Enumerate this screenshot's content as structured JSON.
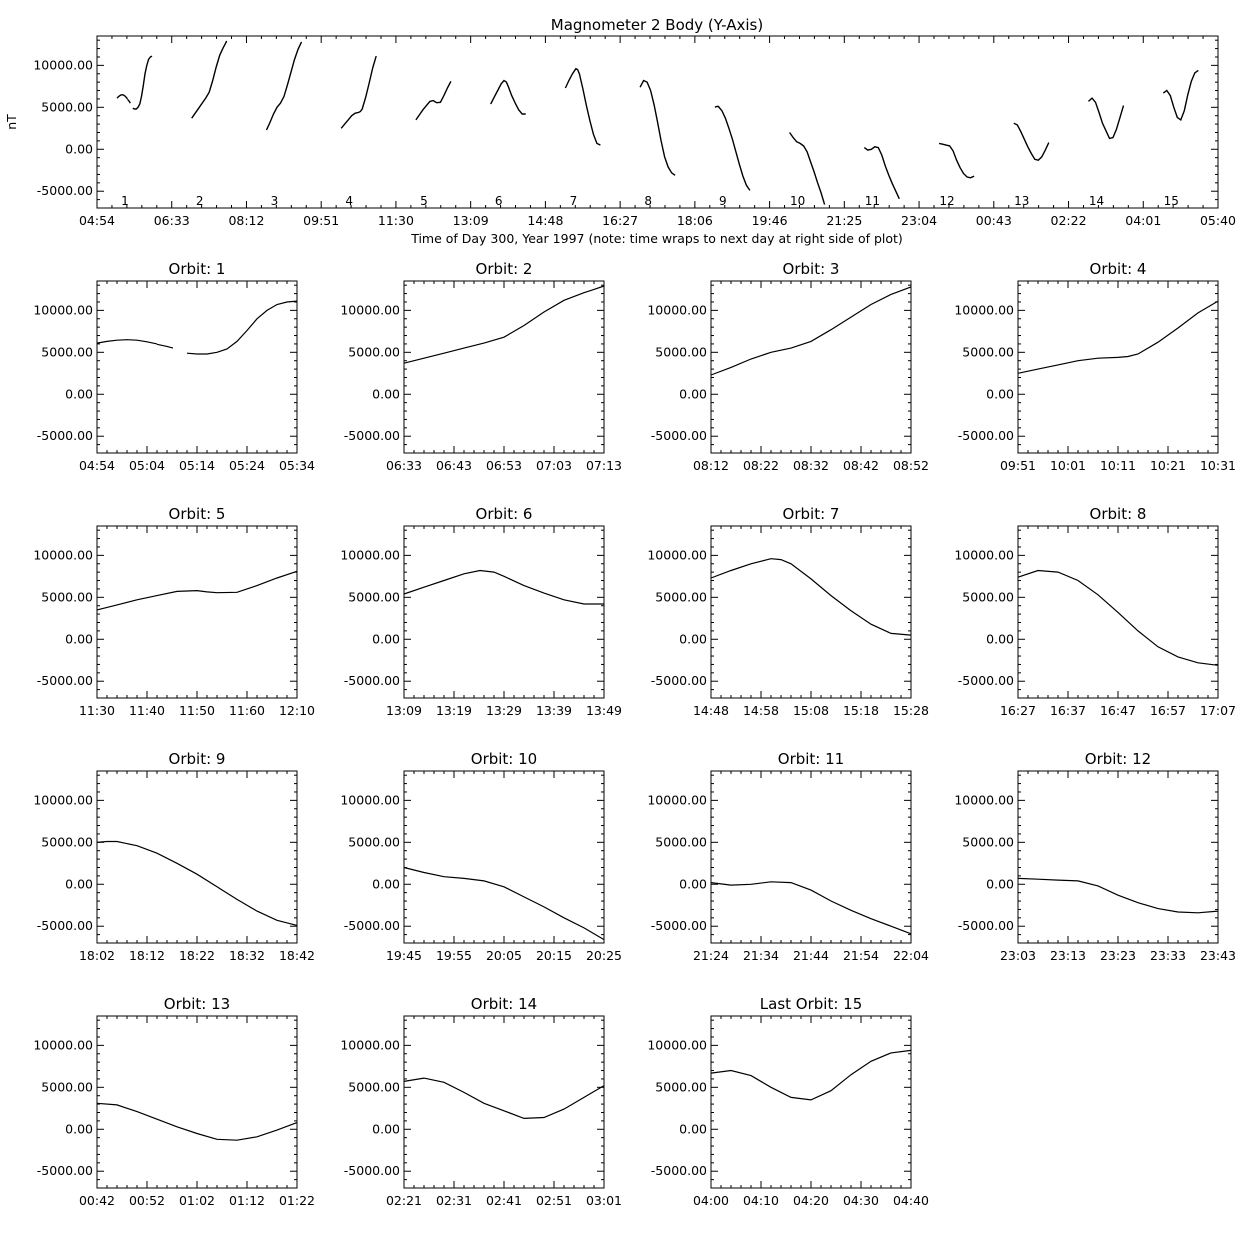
{
  "main": {
    "title": "Magnometer 2 Body (Y-Axis)",
    "xlabel": "Time of Day 300, Year 1997 (note: time wraps to next day at right side of plot)",
    "ylabel": "nT",
    "yticks": [
      "10000.00",
      "5000.00",
      "0.00",
      "-5000.00"
    ],
    "xticks": [
      "04:54",
      "06:33",
      "08:12",
      "09:51",
      "11:30",
      "13:09",
      "14:48",
      "16:27",
      "18:06",
      "19:46",
      "21:25",
      "23:04",
      "00:43",
      "02:22",
      "04:01",
      "05:40"
    ],
    "orbit_labels": [
      "1",
      "2",
      "3",
      "4",
      "5",
      "6",
      "7",
      "8",
      "9",
      "10",
      "11",
      "12",
      "13",
      "14",
      "15"
    ]
  },
  "chart_data": {
    "type": "line",
    "ylim": [
      -7000,
      13500
    ],
    "yticks": [
      10000,
      5000,
      0,
      -5000
    ],
    "main_xlim": [
      0,
      15
    ],
    "panels": [
      {
        "title": "Orbit: 1",
        "xticks": [
          "04:54",
          "05:04",
          "05:14",
          "05:24",
          "05:34"
        ],
        "series": [
          {
            "x": [
              0,
              0.05,
              0.1,
              0.15,
              0.2,
              0.25,
              0.3
            ],
            "y": [
              6100,
              6300,
              6450,
              6500,
              6450,
              6250,
              6000
            ]
          },
          {
            "x": [
              0.3,
              0.35,
              0.38
            ],
            "y": [
              5950,
              5700,
              5500
            ]
          },
          {
            "x": [
              0.45,
              0.5,
              0.55,
              0.6,
              0.65,
              0.7,
              0.75,
              0.8,
              0.85,
              0.9,
              0.95,
              1.0
            ],
            "y": [
              4900,
              4800,
              4800,
              5000,
              5400,
              6300,
              7600,
              9000,
              10000,
              10700,
              11000,
              11100
            ]
          }
        ]
      },
      {
        "title": "Orbit: 2",
        "xticks": [
          "06:33",
          "06:43",
          "06:53",
          "07:03",
          "07:13"
        ],
        "series": [
          {
            "x": [
              0,
              0.1,
              0.2,
              0.3,
              0.4,
              0.5,
              0.6,
              0.7,
              0.8,
              0.9,
              0.95,
              1.0
            ],
            "y": [
              3700,
              4300,
              4900,
              5500,
              6100,
              6800,
              8200,
              9800,
              11200,
              12100,
              12500,
              12900
            ]
          }
        ]
      },
      {
        "title": "Orbit: 3",
        "xticks": [
          "08:12",
          "08:22",
          "08:32",
          "08:42",
          "08:52"
        ],
        "series": [
          {
            "x": [
              0,
              0.1,
              0.2,
              0.3,
              0.4,
              0.5,
              0.6,
              0.7,
              0.8,
              0.9,
              1.0
            ],
            "y": [
              2300,
              3200,
              4200,
              5000,
              5500,
              6300,
              7700,
              9200,
              10700,
              11900,
              12800
            ]
          }
        ]
      },
      {
        "title": "Orbit: 4",
        "xticks": [
          "09:51",
          "10:01",
          "10:11",
          "10:21",
          "10:31"
        ],
        "series": [
          {
            "x": [
              0,
              0.1,
              0.2,
              0.3,
              0.4,
              0.5,
              0.55,
              0.6,
              0.7,
              0.8,
              0.9,
              1.0
            ],
            "y": [
              2500,
              3000,
              3500,
              4000,
              4300,
              4400,
              4500,
              4800,
              6200,
              7900,
              9700,
              11100
            ]
          }
        ]
      },
      {
        "title": "Orbit: 5",
        "xticks": [
          "11:30",
          "11:40",
          "11:50",
          "11:60",
          "12:10"
        ],
        "series": [
          {
            "x": [
              0,
              0.1,
              0.2,
              0.3,
              0.4,
              0.5,
              0.55,
              0.6,
              0.7,
              0.8,
              0.9,
              1.0
            ],
            "y": [
              3500,
              4100,
              4700,
              5200,
              5700,
              5800,
              5650,
              5550,
              5600,
              6400,
              7300,
              8100
            ]
          }
        ]
      },
      {
        "title": "Orbit: 6",
        "xticks": [
          "13:09",
          "13:19",
          "13:29",
          "13:39",
          "13:49"
        ],
        "series": [
          {
            "x": [
              0,
              0.1,
              0.2,
              0.3,
              0.38,
              0.45,
              0.5,
              0.6,
              0.7,
              0.8,
              0.9,
              1.0
            ],
            "y": [
              5400,
              6200,
              7000,
              7800,
              8200,
              8000,
              7500,
              6400,
              5500,
              4700,
              4200,
              4200
            ]
          }
        ]
      },
      {
        "title": "Orbit: 7",
        "xticks": [
          "14:48",
          "14:58",
          "15:08",
          "15:18",
          "15:28"
        ],
        "series": [
          {
            "x": [
              0,
              0.1,
              0.2,
              0.3,
              0.35,
              0.4,
              0.5,
              0.6,
              0.7,
              0.8,
              0.9,
              1.0
            ],
            "y": [
              7300,
              8200,
              9000,
              9600,
              9500,
              9000,
              7200,
              5200,
              3400,
              1800,
              700,
              500
            ]
          }
        ]
      },
      {
        "title": "Orbit: 8",
        "xticks": [
          "16:27",
          "16:37",
          "16:47",
          "16:57",
          "17:07"
        ],
        "series": [
          {
            "x": [
              0,
              0.1,
              0.2,
              0.3,
              0.4,
              0.5,
              0.6,
              0.7,
              0.8,
              0.9,
              1.0
            ],
            "y": [
              7400,
              8200,
              8000,
              7000,
              5300,
              3200,
              1000,
              -900,
              -2100,
              -2800,
              -3100
            ]
          }
        ]
      },
      {
        "title": "Orbit: 9",
        "xticks": [
          "18:02",
          "18:12",
          "18:22",
          "18:32",
          "18:42"
        ],
        "series": [
          {
            "x": [
              0,
              0.05,
              0.1,
              0.2,
              0.3,
              0.4,
              0.5,
              0.6,
              0.7,
              0.8,
              0.9,
              1.0
            ],
            "y": [
              5000,
              5100,
              5100,
              4600,
              3700,
              2500,
              1200,
              -300,
              -1800,
              -3200,
              -4300,
              -4900
            ]
          }
        ]
      },
      {
        "title": "Orbit: 10",
        "xticks": [
          "19:45",
          "19:55",
          "20:05",
          "20:15",
          "20:25"
        ],
        "series": [
          {
            "x": [
              0,
              0.1,
              0.2,
              0.3,
              0.4,
              0.5,
              0.6,
              0.7,
              0.8,
              0.9,
              1.0
            ],
            "y": [
              2000,
              1400,
              900,
              700,
              400,
              -300,
              -1500,
              -2700,
              -4000,
              -5200,
              -6600
            ]
          }
        ]
      },
      {
        "title": "Orbit: 11",
        "xticks": [
          "21:24",
          "21:34",
          "21:44",
          "21:54",
          "22:04"
        ],
        "series": [
          {
            "x": [
              0,
              0.1,
              0.2,
              0.3,
              0.4,
              0.5,
              0.6,
              0.7,
              0.8,
              0.9,
              1.0
            ],
            "y": [
              200,
              -100,
              0,
              300,
              200,
              -700,
              -2000,
              -3100,
              -4100,
              -5000,
              -5900
            ]
          }
        ]
      },
      {
        "title": "Orbit: 12",
        "xticks": [
          "23:03",
          "23:13",
          "23:23",
          "23:33",
          "23:43"
        ],
        "series": [
          {
            "x": [
              0,
              0.1,
              0.2,
              0.3,
              0.4,
              0.5,
              0.6,
              0.7,
              0.8,
              0.9,
              1.0
            ],
            "y": [
              700,
              600,
              500,
              400,
              -200,
              -1300,
              -2200,
              -2900,
              -3300,
              -3400,
              -3200
            ]
          }
        ]
      },
      {
        "title": "Orbit: 13",
        "xticks": [
          "00:42",
          "00:52",
          "01:02",
          "01:12",
          "01:22"
        ],
        "series": [
          {
            "x": [
              0,
              0.1,
              0.2,
              0.3,
              0.4,
              0.5,
              0.6,
              0.7,
              0.8,
              0.9,
              1.0
            ],
            "y": [
              3100,
              2900,
              2100,
              1200,
              300,
              -500,
              -1200,
              -1300,
              -900,
              -100,
              800
            ]
          }
        ]
      },
      {
        "title": "Orbit: 14",
        "xticks": [
          "02:21",
          "02:31",
          "02:41",
          "02:51",
          "03:01"
        ],
        "series": [
          {
            "x": [
              0,
              0.1,
              0.2,
              0.3,
              0.4,
              0.5,
              0.6,
              0.7,
              0.8,
              0.9,
              1.0
            ],
            "y": [
              5700,
              6100,
              5600,
              4400,
              3100,
              2200,
              1300,
              1400,
              2400,
              3800,
              5200
            ]
          }
        ]
      },
      {
        "title": "Last Orbit: 15",
        "xticks": [
          "04:00",
          "04:10",
          "04:20",
          "04:30",
          "04:40"
        ],
        "series": [
          {
            "x": [
              0,
              0.1,
              0.2,
              0.3,
              0.4,
              0.5,
              0.6,
              0.7,
              0.8,
              0.9,
              1.0
            ],
            "y": [
              6700,
              7000,
              6400,
              5000,
              3800,
              3500,
              4600,
              6500,
              8100,
              9100,
              9400
            ]
          }
        ]
      }
    ]
  }
}
